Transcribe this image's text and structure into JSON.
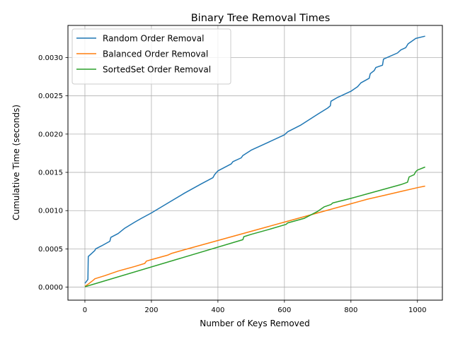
{
  "chart_data": {
    "type": "line",
    "title": "Binary Tree Removal Times",
    "xlabel": "Number of Keys Removed",
    "ylabel": "Cumulative Time (seconds)",
    "xlim": [
      -51,
      1075
    ],
    "ylim": [
      -0.00017,
      0.00342
    ],
    "xticks": [
      0,
      200,
      400,
      600,
      800,
      1000
    ],
    "xtick_labels": [
      "0",
      "200",
      "400",
      "600",
      "800",
      "1000"
    ],
    "yticks": [
      0.0,
      0.0005,
      0.001,
      0.0015,
      0.002,
      0.0025,
      0.003
    ],
    "ytick_labels": [
      "0.0000",
      "0.0005",
      "0.0010",
      "0.0015",
      "0.0020",
      "0.0025",
      "0.0030"
    ],
    "grid": true,
    "legend_position": "upper-left",
    "series": [
      {
        "name": "Random Order Removal",
        "color": "#1f77b4",
        "points": [
          [
            0,
            5e-05
          ],
          [
            9,
            0.0001
          ],
          [
            10,
            0.0004
          ],
          [
            20,
            0.00044
          ],
          [
            30,
            0.00048
          ],
          [
            32,
            0.0005
          ],
          [
            50,
            0.00054
          ],
          [
            75,
            0.0006
          ],
          [
            78,
            0.00065
          ],
          [
            100,
            0.0007
          ],
          [
            120,
            0.00077
          ],
          [
            150,
            0.00085
          ],
          [
            170,
            0.0009
          ],
          [
            200,
            0.00097
          ],
          [
            250,
            0.0011
          ],
          [
            300,
            0.00123
          ],
          [
            350,
            0.00135
          ],
          [
            385,
            0.00143
          ],
          [
            390,
            0.00147
          ],
          [
            400,
            0.00152
          ],
          [
            440,
            0.00161
          ],
          [
            445,
            0.00164
          ],
          [
            470,
            0.00169
          ],
          [
            475,
            0.00172
          ],
          [
            500,
            0.00179
          ],
          [
            550,
            0.00189
          ],
          [
            600,
            0.00199
          ],
          [
            610,
            0.00203
          ],
          [
            650,
            0.00212
          ],
          [
            700,
            0.00226
          ],
          [
            730,
            0.00234
          ],
          [
            738,
            0.00237
          ],
          [
            740,
            0.00243
          ],
          [
            760,
            0.00248
          ],
          [
            800,
            0.00256
          ],
          [
            820,
            0.00262
          ],
          [
            830,
            0.00267
          ],
          [
            855,
            0.00273
          ],
          [
            858,
            0.00279
          ],
          [
            870,
            0.00283
          ],
          [
            875,
            0.00287
          ],
          [
            895,
            0.0029
          ],
          [
            898,
            0.00298
          ],
          [
            940,
            0.00306
          ],
          [
            950,
            0.0031
          ],
          [
            965,
            0.00313
          ],
          [
            972,
            0.00318
          ],
          [
            985,
            0.00322
          ],
          [
            995,
            0.00325
          ],
          [
            1023,
            0.00328
          ]
        ]
      },
      {
        "name": "Balanced Order Removal",
        "color": "#ff7f0e",
        "points": [
          [
            0,
            1e-05
          ],
          [
            10,
            4e-05
          ],
          [
            25,
            9e-05
          ],
          [
            30,
            0.00011
          ],
          [
            60,
            0.00015
          ],
          [
            100,
            0.00021
          ],
          [
            150,
            0.00027
          ],
          [
            180,
            0.00031
          ],
          [
            185,
            0.00034
          ],
          [
            200,
            0.00036
          ],
          [
            250,
            0.00042
          ],
          [
            260,
            0.00044
          ],
          [
            300,
            0.00049
          ],
          [
            350,
            0.00055
          ],
          [
            400,
            0.00061
          ],
          [
            450,
            0.00067
          ],
          [
            500,
            0.00073
          ],
          [
            550,
            0.00079
          ],
          [
            600,
            0.00085
          ],
          [
            650,
            0.00091
          ],
          [
            700,
            0.00097
          ],
          [
            750,
            0.00103
          ],
          [
            800,
            0.00109
          ],
          [
            850,
            0.00115
          ],
          [
            900,
            0.0012
          ],
          [
            950,
            0.00125
          ],
          [
            1000,
            0.0013
          ],
          [
            1023,
            0.00132
          ]
        ]
      },
      {
        "name": "SortedSet Order Removal",
        "color": "#2ca02c",
        "points": [
          [
            0,
            5e-06
          ],
          [
            475,
            0.00062
          ],
          [
            478,
            0.00066
          ],
          [
            500,
            0.00069
          ],
          [
            550,
            0.00075
          ],
          [
            605,
            0.00082
          ],
          [
            610,
            0.00084
          ],
          [
            660,
            0.0009
          ],
          [
            700,
            0.00099
          ],
          [
            720,
            0.00105
          ],
          [
            740,
            0.00108
          ],
          [
            745,
            0.0011
          ],
          [
            800,
            0.00116
          ],
          [
            850,
            0.00122
          ],
          [
            900,
            0.00128
          ],
          [
            950,
            0.00134
          ],
          [
            970,
            0.00137
          ],
          [
            975,
            0.00144
          ],
          [
            990,
            0.00147
          ],
          [
            995,
            0.00151
          ],
          [
            1000,
            0.00153
          ],
          [
            1023,
            0.00157
          ]
        ]
      }
    ]
  }
}
